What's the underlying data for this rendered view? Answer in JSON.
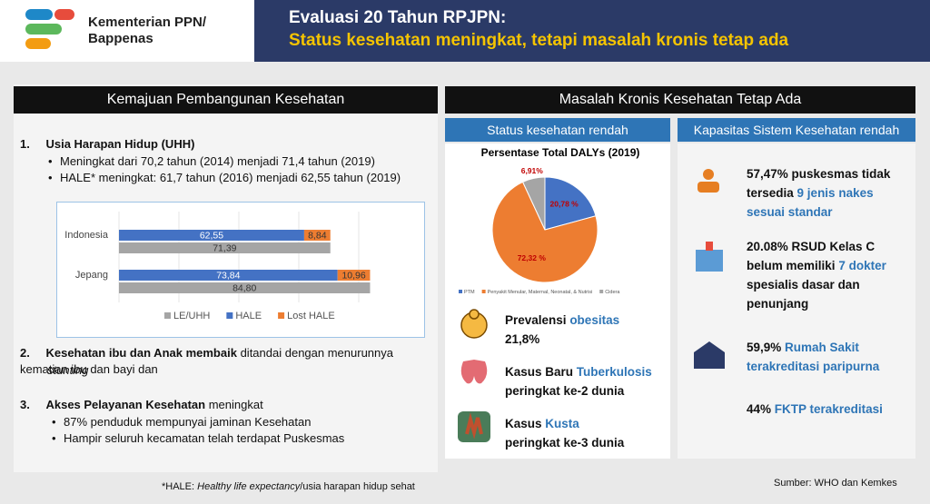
{
  "header": {
    "org_line1": "Kementerian PPN/",
    "org_line2": "Bappenas",
    "title": "Evaluasi 20 Tahun RPJPN:",
    "subtitle": "Status kesehatan meningkat, tetapi masalah kronis tetap ada"
  },
  "left": {
    "heading": "Kemajuan Pembangunan Kesehatan",
    "items": [
      {
        "number": "1.",
        "title": "Usia Harapan Hidup (UHH)",
        "bullets": [
          "Meningkat dari 70,2 tahun (2014) menjadi 71,4 tahun (2019)",
          "HALE* meningkat: 61,7 tahun (2016) menjadi 62,55 tahun (2019)"
        ]
      },
      {
        "number": "2.",
        "title": "Kesehatan ibu dan Anak membaik",
        "text": "ditandai dengan menurunnya kematian ibu dan bayi dan",
        "italic": "stunting"
      },
      {
        "number": "3.",
        "title": "Akses Pelayanan Kesehatan",
        "text": "meningkat",
        "bullets": [
          "87% penduduk mempunyai jaminan Kesehatan",
          "Hampir seluruh kecamatan telah terdapat Puskesmas"
        ]
      }
    ],
    "footnote": {
      "prefix": "*HALE:",
      "italic": "Healthy life expectancy",
      "suffix": "/usia harapan hidup sehat"
    }
  },
  "chart_data": [
    {
      "type": "bar",
      "orientation": "horizontal",
      "categories": [
        "Indonesia",
        "Jepang"
      ],
      "series": [
        {
          "name": "LE/UHH",
          "color": "#a5a5a5",
          "values": [
            71.39,
            84.8
          ],
          "value_labels": [
            "71,39",
            "84,80"
          ]
        },
        {
          "name": "HALE",
          "color": "#4472c4",
          "values": [
            62.55,
            73.84
          ],
          "value_labels": [
            "62,55",
            "73,84"
          ]
        },
        {
          "name": "Lost HALE",
          "color": "#ed7d31",
          "values": [
            8.84,
            10.96
          ],
          "value_labels": [
            "8,84",
            "10,96"
          ]
        }
      ],
      "xlim": [
        0,
        100
      ],
      "legend": "bottom"
    },
    {
      "type": "pie",
      "title": "Persentase Total DALYs (2019)",
      "categories": [
        "PTM",
        "Penyakit Menular, Maternal, Neonatal, & Nutrisi",
        "Cidera"
      ],
      "values": [
        20.78,
        72.32,
        6.91
      ],
      "value_labels": [
        "20,78 %",
        "72,32 %",
        "6,91%"
      ],
      "colors": [
        "#4472c4",
        "#ed7d31",
        "#a5a5a5"
      ],
      "legend": "bottom"
    }
  ],
  "right": {
    "heading": "Masalah Kronis Kesehatan Tetap Ada",
    "sub_left": "Status kesehatan rendah",
    "sub_right": "Kapasitas Sistem Kesehatan rendah",
    "problems": [
      {
        "before": "Prevalensi",
        "highlight": "obesitas",
        "after": "21,8%"
      },
      {
        "before": "Kasus Baru",
        "highlight": "Tuberkulosis",
        "after": "peringkat ke-2 dunia"
      },
      {
        "before": "Kasus",
        "highlight": "Kusta",
        "after": "peringkat ke-3 dunia"
      }
    ],
    "capacity": [
      {
        "before": "57,47% puskesmas tidak tersedia",
        "highlight": "9 jenis nakes sesuai standar"
      },
      {
        "before": "20.08% RSUD Kelas C belum memiliki",
        "highlight": "7 dokter",
        "after": "spesialis dasar dan penunjang"
      },
      {
        "before": "59,9%",
        "highlight": "Rumah Sakit terakreditasi paripurna"
      },
      {
        "before": "44%",
        "highlight": "FKTP terakreditasi"
      }
    ],
    "source": "Sumber: WHO dan Kemkes"
  }
}
